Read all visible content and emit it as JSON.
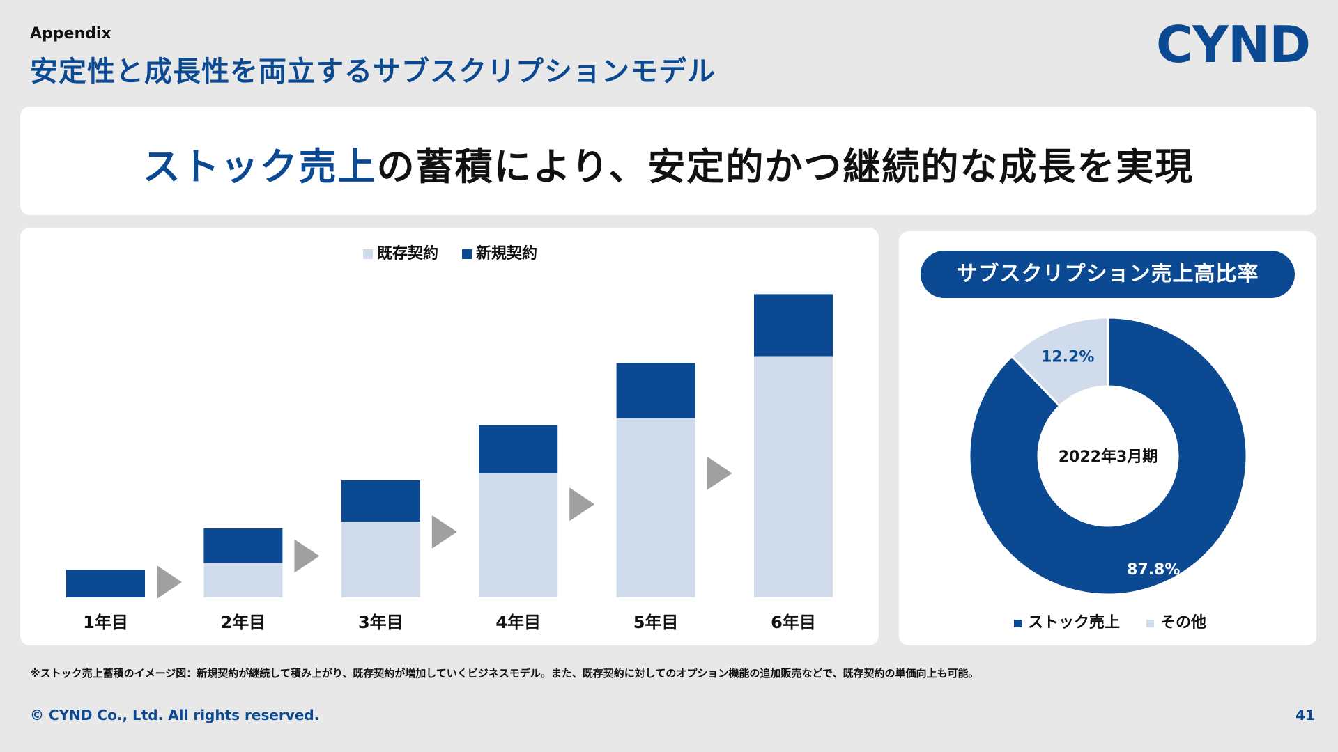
{
  "header": {
    "section_label": "Appendix",
    "title": "安定性と成長性を両立するサブスクリプションモデル",
    "logo_text": "CYND"
  },
  "banner": {
    "headline_highlight": "ストック売上",
    "headline_rest": "の蓄積により、安定的かつ継続的な成長を実現"
  },
  "chart_data": [
    {
      "type": "bar",
      "stacked": true,
      "categories": [
        "1年目",
        "2年目",
        "3年目",
        "4年目",
        "5年目",
        "6年目"
      ],
      "series": [
        {
          "name": "既存契約",
          "color": "#d0dcec",
          "values": [
            0,
            50,
            110,
            180,
            260,
            350
          ]
        },
        {
          "name": "新規契約",
          "color": "#0b4a92",
          "values": [
            40,
            50,
            60,
            70,
            80,
            90
          ]
        }
      ],
      "legend_position": "top-center",
      "arrows_between_bars": true,
      "arrow_color": "#a0a0a0"
    },
    {
      "type": "pie",
      "donut": true,
      "title": "サブスクリプション売上高比率",
      "center_label": "2022年3月期",
      "labels": [
        "ストック売上",
        "その他"
      ],
      "values": [
        87.8,
        12.2
      ],
      "value_labels": [
        "87.8%",
        "12.2%"
      ],
      "colors": [
        "#0b4a92",
        "#d0dcec"
      ],
      "legend_position": "bottom"
    }
  ],
  "footnote": "※ストック売上蓄積のイメージ図：新規契約が継続して積み上がり、既存契約が増加していくビジネスモデル。また、既存契約に対してのオプション機能の追加販売などで、既存契約の単価向上も可能。",
  "footer": {
    "copyright": "© CYND Co., Ltd. All rights reserved.",
    "page_number": "41"
  }
}
